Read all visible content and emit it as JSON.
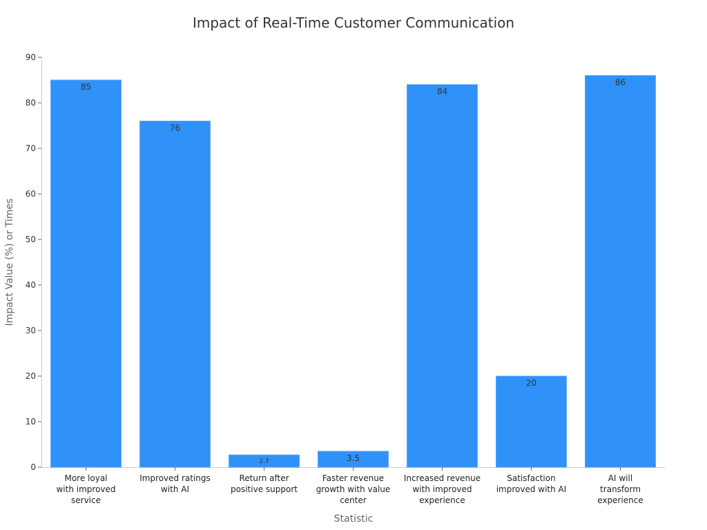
{
  "chart_data": {
    "type": "bar",
    "title": "Impact of Real-Time Customer Communication",
    "xlabel": "Statistic",
    "ylabel": "Impact Value (%) or Times",
    "ylim": [
      0,
      90
    ],
    "yticks": [
      0,
      10,
      20,
      30,
      40,
      50,
      60,
      70,
      80,
      90
    ],
    "grid": false,
    "categories": [
      [
        "More loyal",
        "with improved",
        "service"
      ],
      [
        "Improved ratings",
        "with AI"
      ],
      [
        "Return after",
        "positive support"
      ],
      [
        "Faster revenue",
        "growth with value",
        "center"
      ],
      [
        "Increased revenue",
        "with improved",
        "experience"
      ],
      [
        "Satisfaction",
        "improved with AI"
      ],
      [
        "AI will",
        "transform",
        "experience"
      ]
    ],
    "values": [
      85,
      76,
      2.7,
      3.5,
      84,
      20,
      86
    ],
    "data_labels": [
      "85",
      "76",
      "2.7",
      "3.5",
      "84",
      "20",
      "86"
    ],
    "bar_color": "#3091f8"
  }
}
